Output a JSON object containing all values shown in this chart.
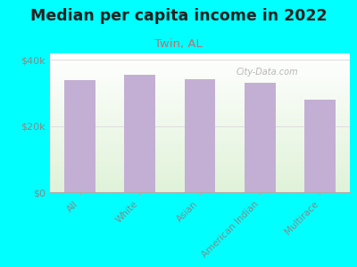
{
  "title": "Median per capita income in 2022",
  "subtitle": "Twin, AL",
  "categories": [
    "All",
    "White",
    "Asian",
    "American Indian",
    "Multirace"
  ],
  "values": [
    34000,
    35500,
    34200,
    33000,
    28000
  ],
  "bar_color": "#c4afd4",
  "background_color": "#00ffff",
  "title_fontsize": 12.5,
  "title_fontweight": "bold",
  "title_color": "#222222",
  "subtitle_fontsize": 9.5,
  "subtitle_color": "#c07070",
  "ytick_label_color": "#888888",
  "xtick_label_color": "#888888",
  "ylim": [
    0,
    42000
  ],
  "yticks": [
    0,
    20000,
    40000
  ],
  "ytick_labels": [
    "$0",
    "$20k",
    "$40k"
  ],
  "watermark": "City-Data.com",
  "grid_color": "#dddddd"
}
